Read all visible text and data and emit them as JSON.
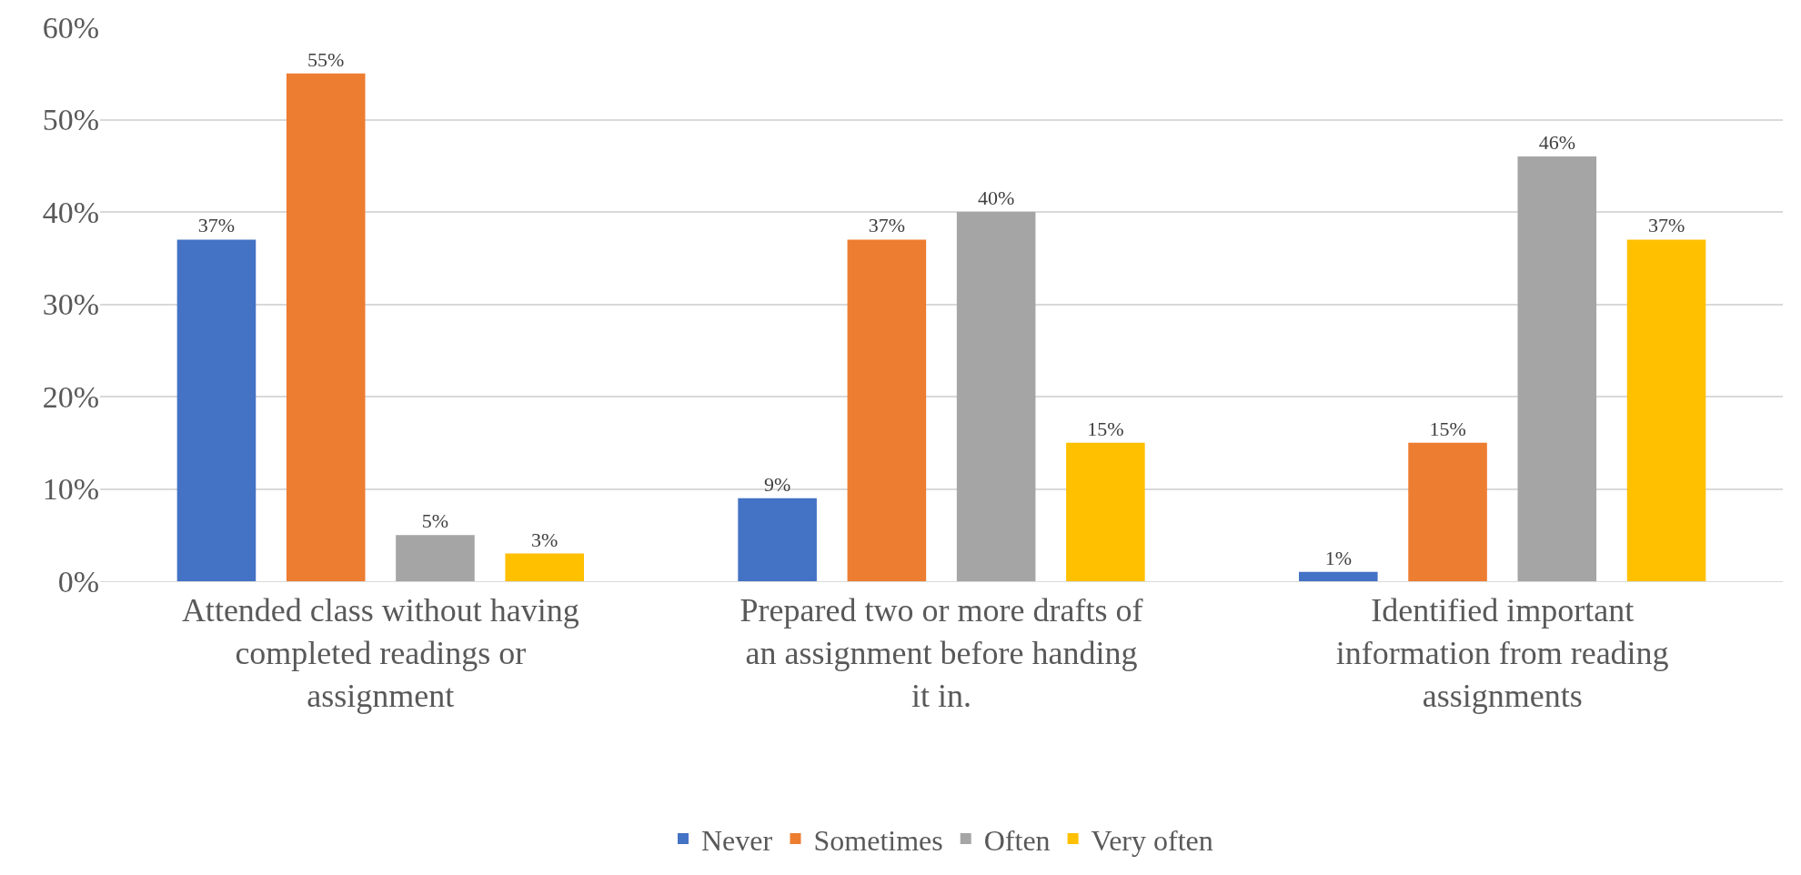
{
  "chart_data": {
    "type": "bar",
    "categories": [
      "Attended class without having completed readings or assignment",
      "Prepared two or more drafts of an assignment before handing it in.",
      "Identified important information from reading assignments"
    ],
    "series": [
      {
        "name": "Never",
        "color": "#4472c4",
        "values": [
          37,
          9,
          1
        ],
        "value_labels": [
          "37%",
          "9%",
          "1%"
        ]
      },
      {
        "name": "Sometimes",
        "color": "#ed7d31",
        "values": [
          55,
          37,
          15
        ],
        "value_labels": [
          "55%",
          "37%",
          "15%"
        ]
      },
      {
        "name": "Often",
        "color": "#a5a5a5",
        "values": [
          5,
          40,
          46
        ],
        "value_labels": [
          "5%",
          "40%",
          "46%"
        ]
      },
      {
        "name": "Very often",
        "color": "#ffc000",
        "values": [
          3,
          15,
          37
        ],
        "value_labels": [
          "3%",
          "15%",
          "37%"
        ]
      }
    ],
    "ylim": [
      0,
      60
    ],
    "yticks": [
      {
        "value": 0,
        "label": "0%"
      },
      {
        "value": 10,
        "label": "10%"
      },
      {
        "value": 20,
        "label": "20%"
      },
      {
        "value": 30,
        "label": "30%"
      },
      {
        "value": 40,
        "label": "40%"
      },
      {
        "value": 50,
        "label": "50%"
      },
      {
        "value": 60,
        "label": "60%"
      }
    ],
    "grid": "y",
    "legend": "bottom"
  }
}
